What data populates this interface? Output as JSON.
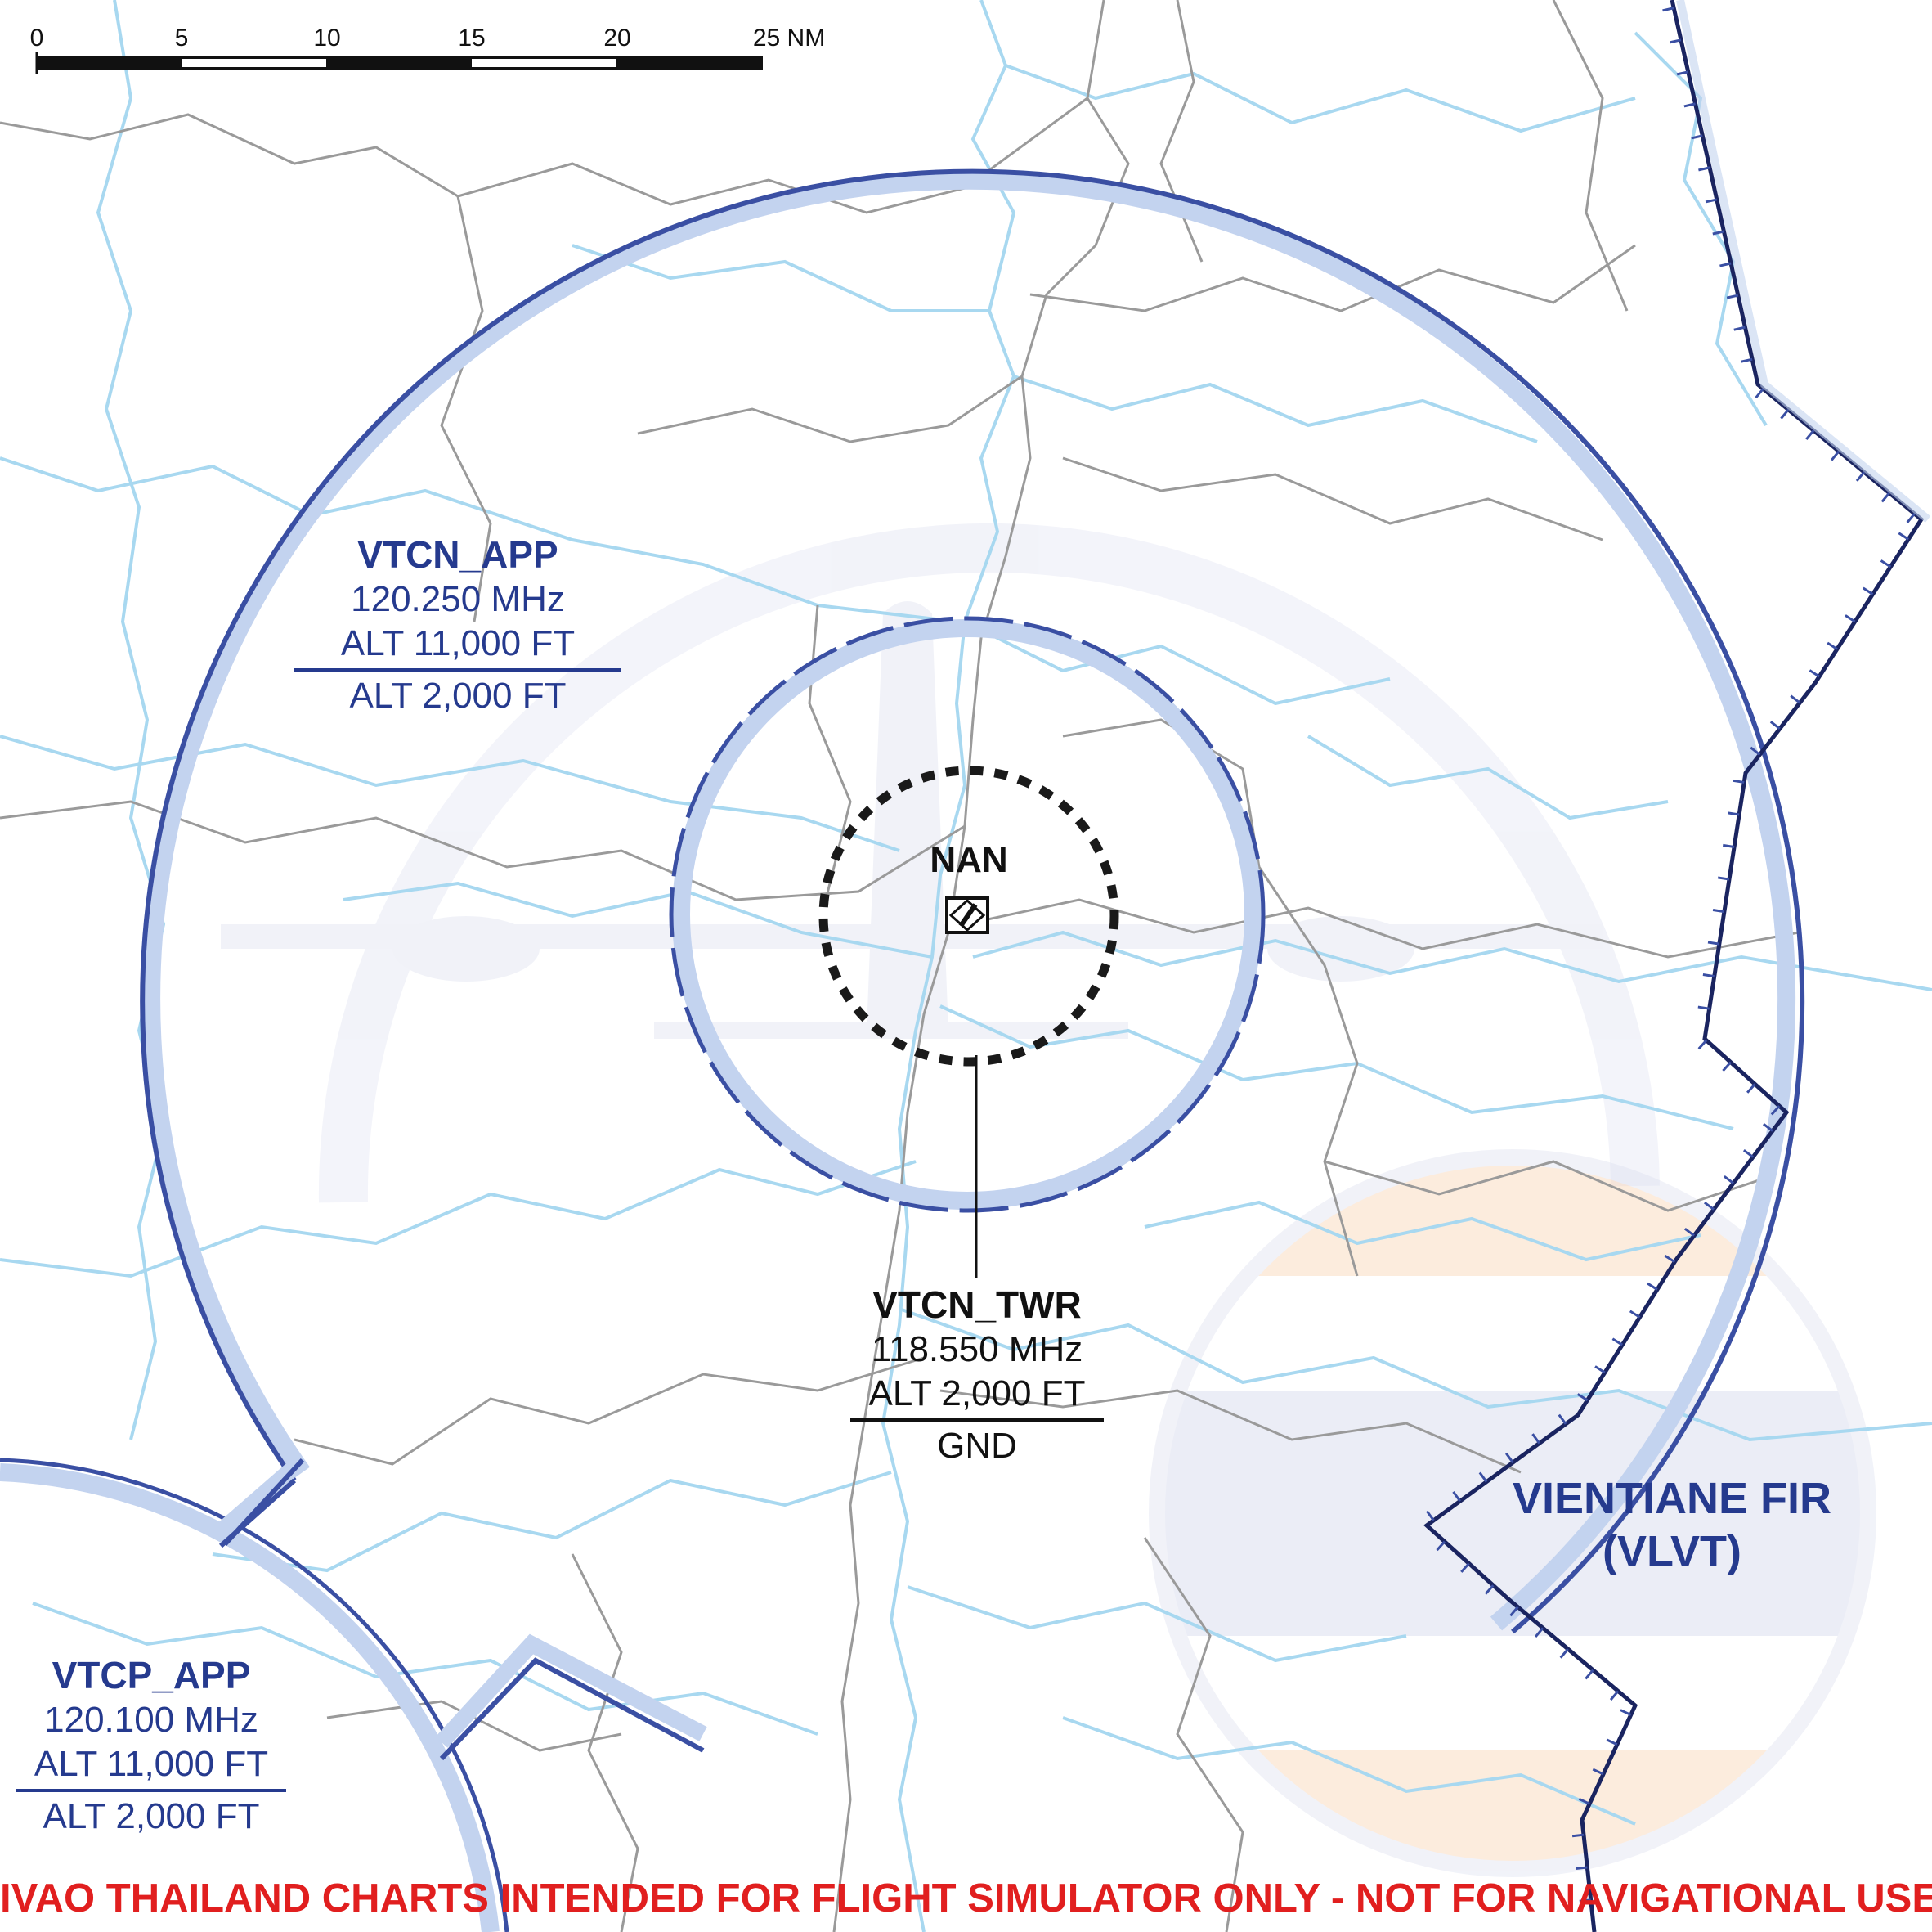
{
  "scale_bar": {
    "ticks": [
      "0",
      "5",
      "10",
      "15",
      "20",
      "25 NM"
    ]
  },
  "approach_sector": {
    "callsign": "VTCN_APP",
    "frequency": "120.250 MHz",
    "upper_limit": "ALT 11,000 FT",
    "lower_limit": "ALT 2,000 FT"
  },
  "adjacent_approach": {
    "callsign": "VTCP_APP",
    "frequency": "120.100 MHz",
    "upper_limit": "ALT 11,000 FT",
    "lower_limit": "ALT 2,000 FT"
  },
  "tower": {
    "callsign": "VTCN_TWR",
    "frequency": "118.550 MHz",
    "upper_limit": "ALT 2,000 FT",
    "lower_limit": "GND"
  },
  "airport": {
    "name": "NAN"
  },
  "fir": {
    "name": "VIENTIANE FIR",
    "code": "(VLVT)"
  },
  "disclaimer": "IVAO THAILAND CHARTS INTENDED FOR FLIGHT SIMULATOR ONLY - NOT FOR NAVIGATIONAL USE",
  "colors": {
    "sector_border": "#3a4fa3",
    "sector_halo": "#c3d3ef",
    "fir_border": "#1a2460",
    "rivers": "#a8d8f0",
    "roads": "#9a9a9a",
    "label_blue": "#253a8e",
    "disclaimer_red": "#e11f1f"
  }
}
